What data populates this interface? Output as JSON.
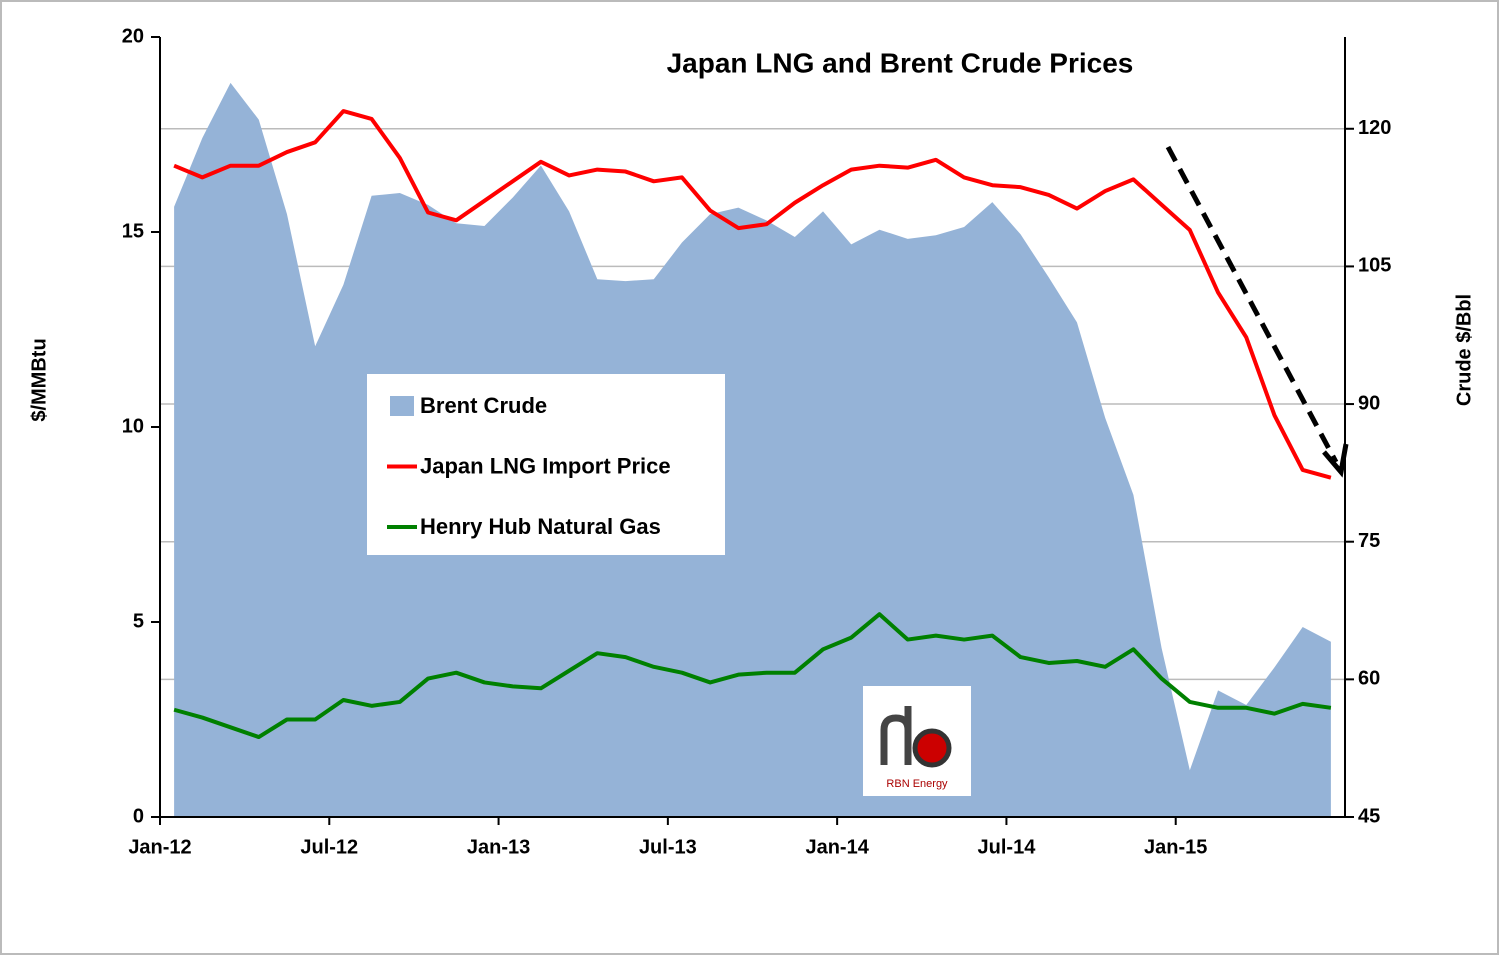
{
  "chart_data": {
    "type": "line",
    "title": "Japan LNG and Brent Crude Prices",
    "y_label": "$/MMBtu",
    "y2_label": "Crude $/Bbl",
    "logo_text": "RBN Energy",
    "categories": [
      "Jan-12",
      null,
      null,
      null,
      null,
      null,
      "Jul-12",
      null,
      null,
      null,
      null,
      null,
      "Jan-13",
      null,
      null,
      null,
      null,
      null,
      "Jul-13",
      null,
      null,
      null,
      null,
      null,
      "Jan-14",
      null,
      null,
      null,
      null,
      null,
      "Jul-14",
      null,
      null,
      null,
      null,
      null,
      "Jan-15",
      null,
      null,
      null,
      null,
      null
    ],
    "ylim": [
      0,
      20
    ],
    "yticks": [
      0,
      5,
      10,
      15,
      20
    ],
    "y2lim": [
      45,
      130
    ],
    "y2ticks": [
      45,
      60,
      75,
      90,
      105,
      120
    ],
    "grid": true,
    "series": [
      {
        "name": "Brent Crude",
        "type": "area",
        "axis": "y2",
        "color": "#95b3d7",
        "values": [
          111.5,
          119,
          125,
          121,
          110.7,
          96.3,
          103,
          112.7,
          113,
          111.7,
          109.7,
          109.4,
          112.5,
          116,
          111,
          103.6,
          103.4,
          103.6,
          107.6,
          110.7,
          111.4,
          110,
          108.2,
          111,
          107.4,
          109,
          108,
          108.4,
          109.3,
          112,
          108.5,
          103.8,
          98.9,
          88.5,
          80.1,
          63.4,
          50.1,
          58.8,
          57.2,
          61.3,
          65.7,
          64.1
        ]
      },
      {
        "name": "Japan LNG Import Price",
        "type": "line",
        "color": "#ff0000",
        "values": [
          16.7,
          16.4,
          16.7,
          16.7,
          17.05,
          17.3,
          18.1,
          17.9,
          16.9,
          15.5,
          15.3,
          15.8,
          16.3,
          16.8,
          16.45,
          16.6,
          16.55,
          16.3,
          16.4,
          15.55,
          15.1,
          15.2,
          15.75,
          16.2,
          16.6,
          16.7,
          16.65,
          16.85,
          16.4,
          16.2,
          16.15,
          15.95,
          15.6,
          16.05,
          16.35,
          15.7,
          15.05,
          13.45,
          12.3,
          10.3,
          8.9,
          8.7
        ]
      },
      {
        "name": "Henry Hub Natural Gas",
        "type": "line",
        "color": "#008000",
        "values": [
          2.75,
          2.55,
          2.3,
          2.05,
          2.5,
          2.5,
          3.0,
          2.85,
          2.95,
          3.55,
          3.7,
          3.45,
          3.35,
          3.3,
          3.75,
          4.2,
          4.1,
          3.85,
          3.7,
          3.45,
          3.65,
          3.7,
          3.7,
          4.3,
          4.6,
          5.2,
          4.55,
          4.65,
          4.55,
          4.65,
          4.1,
          3.95,
          4.0,
          3.85,
          4.3,
          3.55,
          2.95,
          2.8,
          2.8,
          2.65,
          2.9,
          2.8
        ]
      }
    ]
  }
}
